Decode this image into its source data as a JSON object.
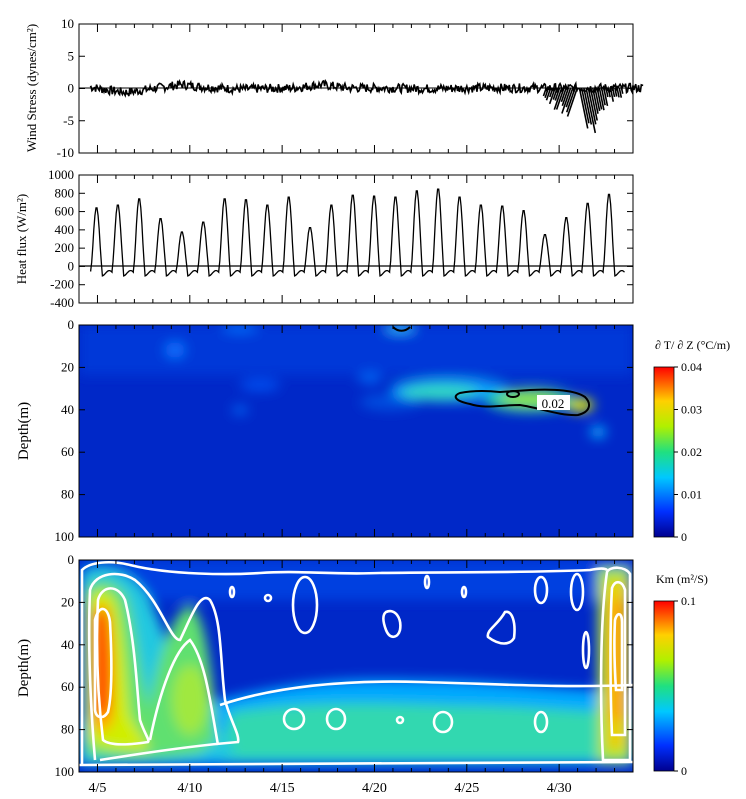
{
  "chart_data": [
    {
      "type": "line",
      "ylabel": "Wind Stress (dynes/cm²)",
      "ylim": [
        -10,
        10
      ],
      "yticks": [
        "10",
        "5",
        "0",
        "-5",
        "-10"
      ],
      "x_range": [
        "4/4",
        "5/4"
      ],
      "series": [
        {
          "x": [
            "4/4",
            "4/5",
            "4/6",
            "4/8",
            "4/9",
            "4/10",
            "4/12",
            "4/15",
            "4/16.5",
            "4/18",
            "4/20",
            "4/22",
            "4/25",
            "4/28",
            "4/29",
            "4/30",
            "5/1",
            "5/2",
            "5/4"
          ],
          "y": [
            0.5,
            -1,
            -2,
            0.5,
            1.5,
            0.5,
            -0.5,
            0,
            1.5,
            0,
            0,
            -0.3,
            0,
            0,
            -2,
            -4,
            -7,
            -2,
            0
          ]
        }
      ]
    },
    {
      "type": "line",
      "ylabel": "Heat flux (W/m²)",
      "ylim": [
        -400,
        1000
      ],
      "yticks": [
        "1000",
        "800",
        "600",
        "400",
        "200",
        "0",
        "-200",
        "-400"
      ],
      "daily_peaks": [
        650,
        680,
        750,
        530,
        380,
        490,
        750,
        740,
        680,
        770,
        430,
        680,
        790,
        780,
        770,
        840,
        860,
        770,
        680,
        670,
        620,
        350,
        540,
        700,
        800
      ]
    },
    {
      "type": "heatmap",
      "ylabel": "Depth(m)",
      "yticks": [
        "0",
        "20",
        "40",
        "60",
        "80",
        "100"
      ],
      "ylim": [
        0,
        100
      ],
      "colorbar": {
        "title": "∂ T/ ∂ Z (°C/m)",
        "range": [
          0,
          0.04
        ],
        "ticks": [
          "0.04",
          "0.03",
          "0.02",
          "0.01",
          "0"
        ]
      },
      "contour_label": "0.02"
    },
    {
      "type": "heatmap",
      "ylabel": "Depth(m)",
      "yticks": [
        "0",
        "20",
        "40",
        "60",
        "80",
        "100"
      ],
      "ylim": [
        0,
        100
      ],
      "colorbar": {
        "title": "Km (m²/S)",
        "range": [
          0,
          0.1
        ],
        "ticks": [
          "0.1",
          "0"
        ]
      }
    }
  ],
  "xticks": [
    "4/5",
    "4/10",
    "4/15",
    "4/20",
    "4/25",
    "4/30"
  ],
  "colors": {
    "jet_low": "#00008f",
    "jet_high": "#ff0000"
  }
}
